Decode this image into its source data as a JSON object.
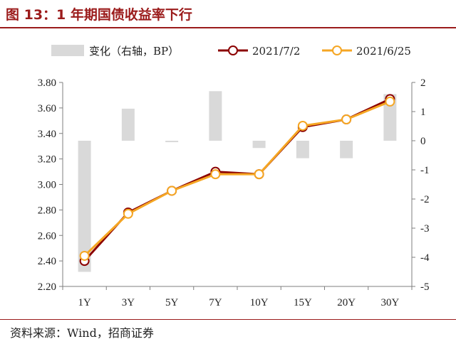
{
  "title": "图 13：1 年期国债收益率下行",
  "source": "资料来源：Wind，招商证券",
  "chart_data": {
    "type": "line+bar",
    "categories": [
      "1Y",
      "3Y",
      "5Y",
      "7Y",
      "10Y",
      "15Y",
      "20Y",
      "30Y"
    ],
    "bar_series": {
      "name": "变化（右轴，BP）",
      "values": [
        -4.5,
        1.1,
        -0.05,
        1.7,
        -0.25,
        -0.6,
        -0.6,
        1.6
      ],
      "color": "#d9d9d9"
    },
    "line_series": [
      {
        "name": "2021/7/2",
        "values": [
          2.4,
          2.78,
          2.95,
          3.1,
          3.08,
          3.45,
          3.51,
          3.67
        ],
        "color": "#8b0000"
      },
      {
        "name": "2021/6/25",
        "values": [
          2.44,
          2.77,
          2.95,
          3.08,
          3.08,
          3.46,
          3.51,
          3.65
        ],
        "color": "#f5a623"
      }
    ],
    "y_left": {
      "min": 2.2,
      "max": 3.8,
      "step": 0.2,
      "ticks": [
        "2.20",
        "2.40",
        "2.60",
        "2.80",
        "3.00",
        "3.20",
        "3.40",
        "3.60",
        "3.80"
      ]
    },
    "y_right": {
      "min": -5,
      "max": 2,
      "step": 1,
      "ticks": [
        "-5",
        "-4",
        "-3",
        "-2",
        "-1",
        "0",
        "1",
        "2"
      ]
    },
    "legend_position": "top",
    "grid": false
  }
}
